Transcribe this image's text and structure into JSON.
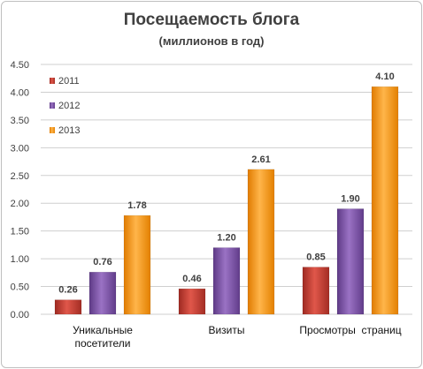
{
  "chart_data": {
    "type": "bar",
    "title": "Посещаемость блога",
    "subtitle": "(миллионов в год)",
    "categories": [
      [
        "Уникальные",
        "посетители"
      ],
      [
        "Визиты"
      ],
      [
        "Просмотры  страниц"
      ]
    ],
    "series": [
      {
        "name": "2011",
        "color": "#c0392b",
        "values": [
          0.26,
          0.46,
          0.85
        ]
      },
      {
        "name": "2012",
        "color": "#7b4fa6",
        "values": [
          0.76,
          1.2,
          1.9
        ]
      },
      {
        "name": "2013",
        "color": "#f39c12",
        "values": [
          1.78,
          2.61,
          4.1
        ]
      }
    ],
    "yticks": [
      "0.00",
      "0.50",
      "1.00",
      "1.50",
      "2.00",
      "2.50",
      "3.00",
      "3.50",
      "4.00",
      "4.50"
    ],
    "ylim": [
      0,
      4.5
    ],
    "grid": true,
    "legend": "top-left"
  }
}
